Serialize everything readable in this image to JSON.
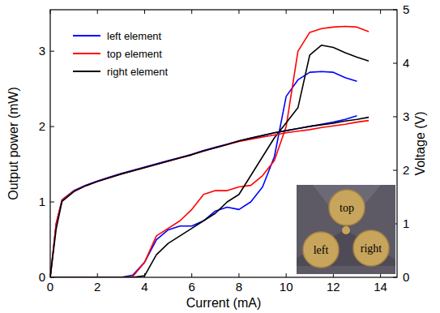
{
  "chart_data": {
    "type": "line",
    "x_label": "Current (mA)",
    "y_label": "Output power (mW)",
    "y2_label": "Voltage (V)",
    "x": [
      0,
      0.25,
      0.5,
      1,
      1.5,
      2,
      2.5,
      3,
      3.5,
      4,
      4.5,
      5,
      5.5,
      6,
      6.5,
      7,
      7.5,
      8,
      8.5,
      9,
      9.5,
      10,
      10.5,
      11,
      11.5,
      12,
      12.5,
      13,
      13.5
    ],
    "xlim": [
      0,
      14.7
    ],
    "xticks": [
      0,
      2,
      4,
      6,
      8,
      10,
      12,
      14
    ],
    "ylim": [
      0,
      3.55
    ],
    "yticks": [
      0,
      1,
      2,
      3
    ],
    "y2lim": [
      0,
      5
    ],
    "y2ticks": [
      0,
      1,
      2,
      3,
      4,
      5
    ],
    "legend": "upper left",
    "grid": false,
    "annotations": [
      "top",
      "left",
      "right"
    ],
    "series": [
      {
        "name": "left element",
        "color": "#0000ff",
        "values": [
          0,
          0,
          0,
          0,
          0,
          0,
          0,
          0,
          0.03,
          0.2,
          0.5,
          0.63,
          0.68,
          0.68,
          0.75,
          0.88,
          0.93,
          0.9,
          1.0,
          1.2,
          1.6,
          2.4,
          2.62,
          2.72,
          2.73,
          2.72,
          2.65,
          2.6,
          null
        ]
      },
      {
        "name": "top element",
        "color": "#ff0000",
        "values": [
          0,
          0,
          0,
          0,
          0,
          0,
          0,
          0,
          0.01,
          0.2,
          0.55,
          0.65,
          0.75,
          0.9,
          1.1,
          1.15,
          1.15,
          1.2,
          1.22,
          1.35,
          1.55,
          2.0,
          3.0,
          3.25,
          3.3,
          3.32,
          3.33,
          3.32,
          3.26
        ]
      },
      {
        "name": "right element",
        "color": "#000000",
        "values": [
          0,
          0,
          0,
          0,
          0,
          0,
          0,
          0,
          0,
          0.02,
          0.3,
          0.45,
          0.55,
          0.65,
          0.75,
          0.85,
          1.0,
          1.1,
          1.35,
          1.6,
          1.85,
          2.05,
          2.25,
          2.95,
          3.08,
          3.05,
          2.98,
          2.92,
          2.87
        ]
      },
      {
        "name": "left element",
        "color": "#0000ff",
        "axis": "y2",
        "values": [
          0,
          1.0,
          1.45,
          1.62,
          1.72,
          1.8,
          1.87,
          1.94,
          2.0,
          2.06,
          2.12,
          2.18,
          2.24,
          2.3,
          2.37,
          2.43,
          2.49,
          2.55,
          2.6,
          2.65,
          2.7,
          2.74,
          2.78,
          2.82,
          2.86,
          2.9,
          2.95,
          3.02,
          null
        ]
      },
      {
        "name": "top element",
        "color": "#ff0000",
        "axis": "y2",
        "values": [
          0,
          1.0,
          1.44,
          1.61,
          1.71,
          1.79,
          1.86,
          1.93,
          1.99,
          2.05,
          2.11,
          2.17,
          2.23,
          2.29,
          2.36,
          2.42,
          2.48,
          2.54,
          2.58,
          2.62,
          2.66,
          2.7,
          2.73,
          2.76,
          2.8,
          2.83,
          2.86,
          2.9,
          2.93
        ]
      },
      {
        "name": "right element",
        "color": "#000000",
        "axis": "y2",
        "values": [
          0,
          0.9,
          1.42,
          1.6,
          1.71,
          1.79,
          1.86,
          1.93,
          1.99,
          2.05,
          2.11,
          2.17,
          2.23,
          2.29,
          2.36,
          2.42,
          2.48,
          2.55,
          2.6,
          2.65,
          2.7,
          2.74,
          2.78,
          2.82,
          2.85,
          2.88,
          2.92,
          2.95,
          2.99
        ]
      }
    ]
  }
}
